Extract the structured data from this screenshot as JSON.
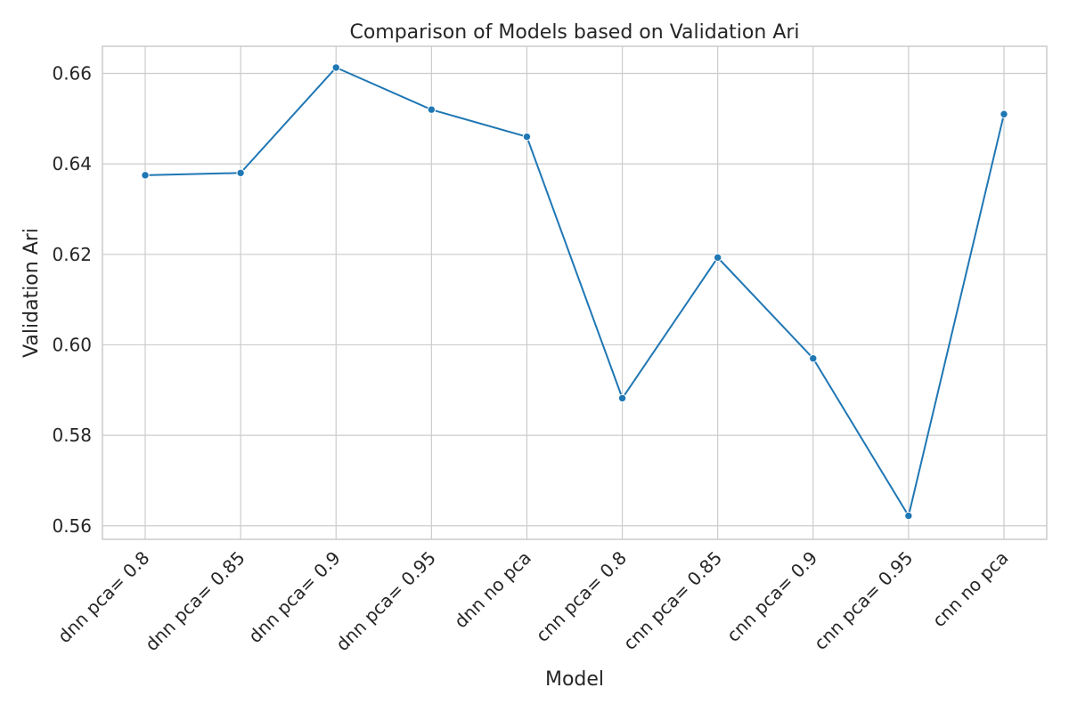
{
  "chart_data": {
    "type": "line",
    "title": "Comparison of Models based on Validation Ari",
    "xlabel": "Model",
    "ylabel": "Validation Ari",
    "categories": [
      "dnn pca= 0.8",
      "dnn pca= 0.85",
      "dnn pca= 0.9",
      "dnn pca= 0.95",
      "dnn no pca",
      "cnn pca= 0.8",
      "cnn pca= 0.85",
      "cnn pca= 0.9",
      "cnn pca= 0.95",
      "cnn no pca"
    ],
    "series": [
      {
        "values": [
          0.6375,
          0.638,
          0.6613,
          0.652,
          0.646,
          0.5882,
          0.6193,
          0.597,
          0.5622,
          0.651
        ],
        "color": "#1f77b4"
      }
    ],
    "yticks": [
      "0.56",
      "0.58",
      "0.60",
      "0.62",
      "0.64",
      "0.66"
    ],
    "ylim": [
      0.557,
      0.666
    ],
    "grid": true,
    "legend": "none"
  }
}
